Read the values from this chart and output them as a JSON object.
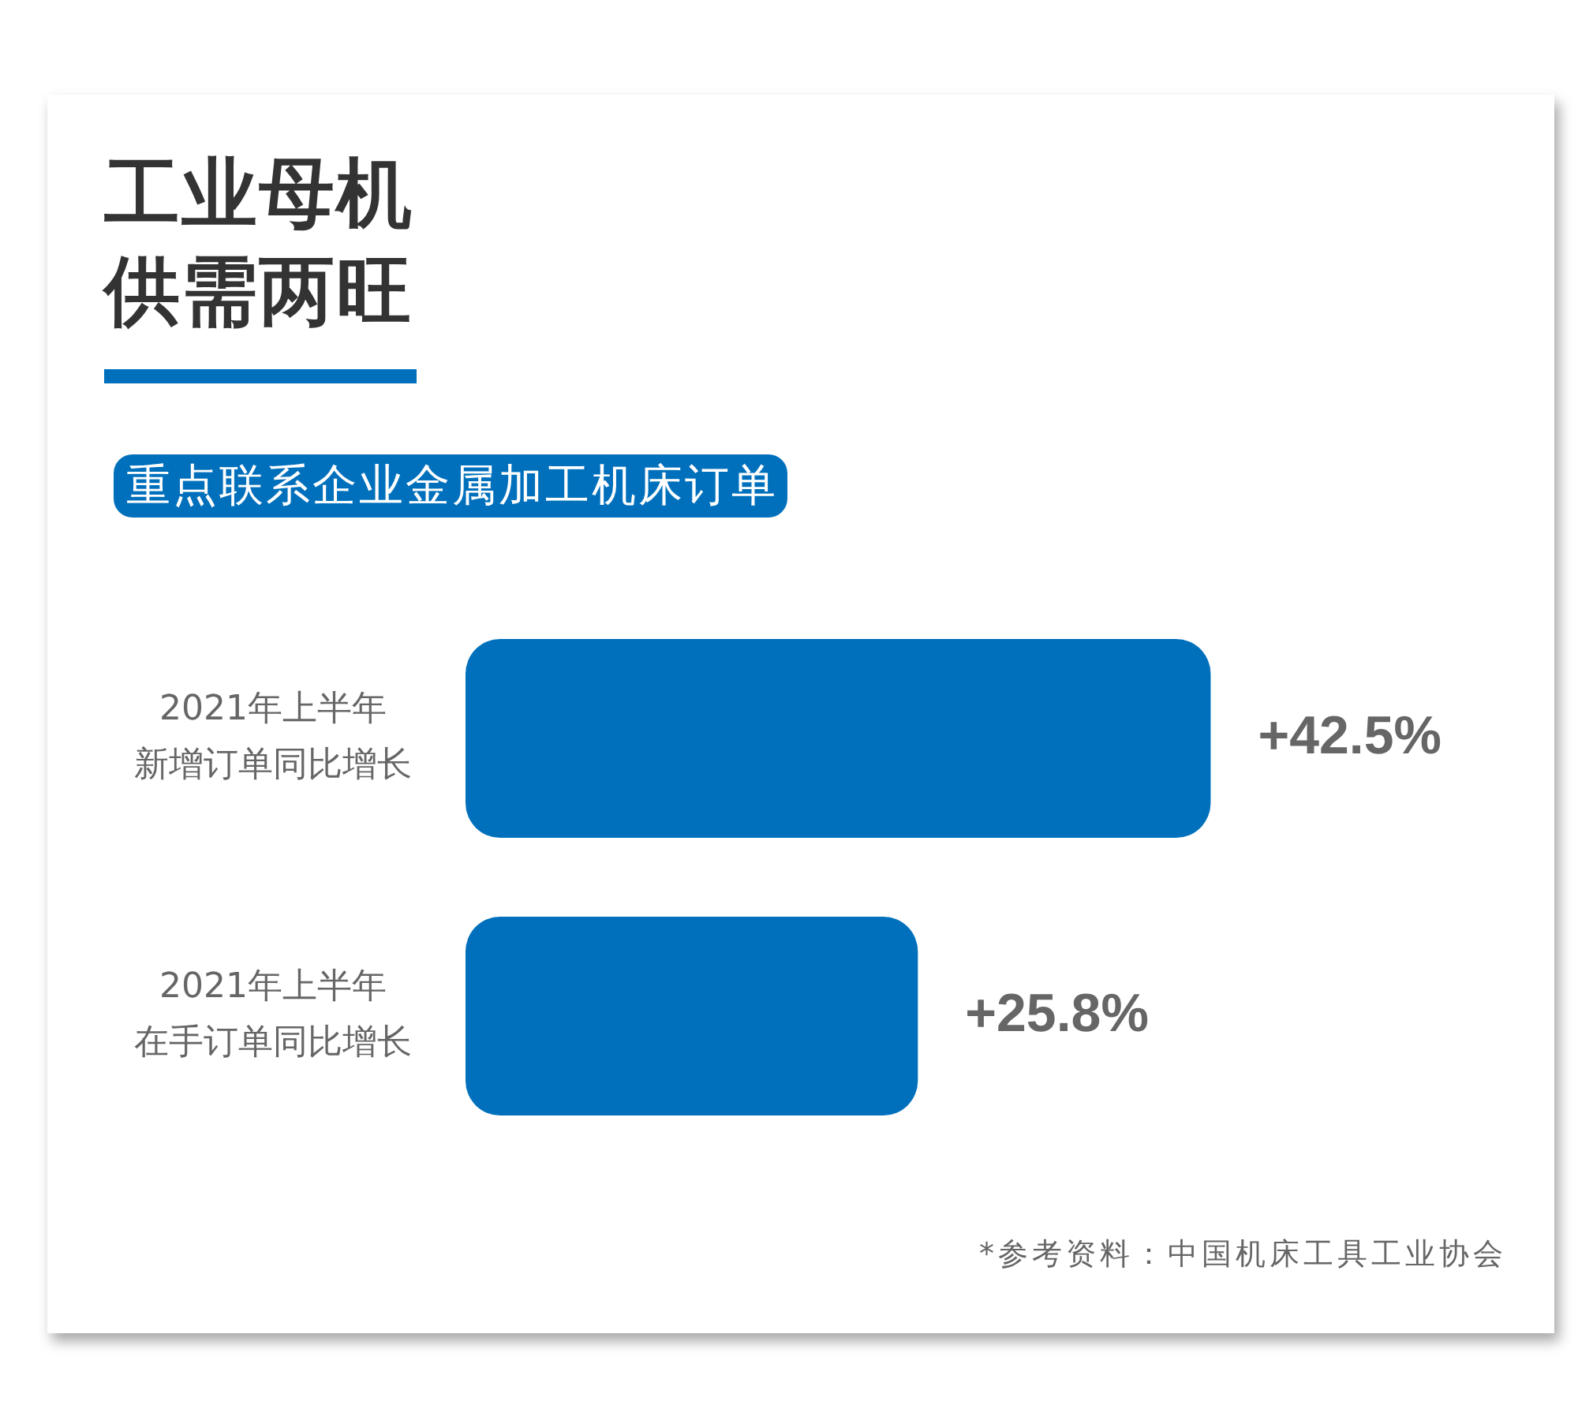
{
  "chart_data": {
    "type": "bar",
    "orientation": "horizontal",
    "title": "工业母机供需两旺",
    "subtitle": "重点联系企业金属加工机床订单",
    "categories": [
      "2021年上半年新增订单同比增长",
      "2021年上半年在手订单同比增长"
    ],
    "values": [
      42.5,
      25.8
    ],
    "color": "#0070bc",
    "value_labels": [
      "+42.5%",
      "+25.8%"
    ],
    "tick_labels": "y",
    "annotations": [
      "*参考资料：中国机床工具工业协会"
    ]
  }
}
